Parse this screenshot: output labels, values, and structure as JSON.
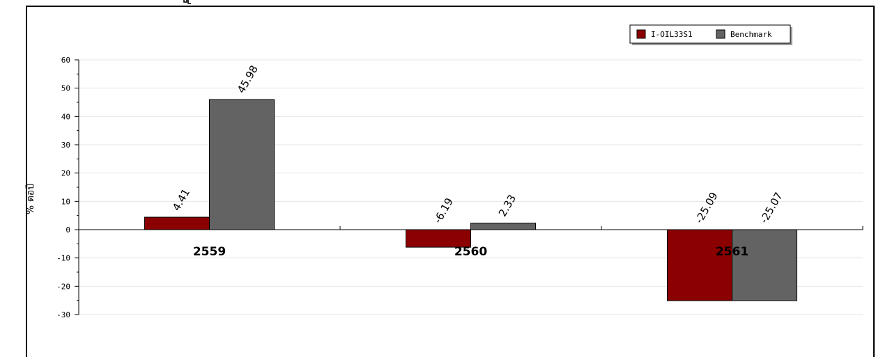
{
  "chart_data": {
    "type": "bar",
    "categories": [
      "2559",
      "2560",
      "2561"
    ],
    "series": [
      {
        "name": "I-OIL33S1",
        "color": "#8b0000",
        "values": [
          4.41,
          -6.19,
          -25.09
        ]
      },
      {
        "name": "Benchmark",
        "color": "#636363",
        "values": [
          45.98,
          2.33,
          -25.07
        ]
      }
    ],
    "data_labels": [
      [
        "4.41",
        "-6.19",
        "-25.09"
      ],
      [
        "45.98",
        "2.33",
        "-25.07"
      ]
    ],
    "ylabel": "% ต่อปี",
    "ylim": [
      -30,
      60
    ],
    "yticks": [
      "60",
      "50",
      "40",
      "30",
      "20",
      "10",
      "0",
      "-10",
      "-20",
      "-30"
    ],
    "grid": true,
    "legend_position": "top-right"
  }
}
